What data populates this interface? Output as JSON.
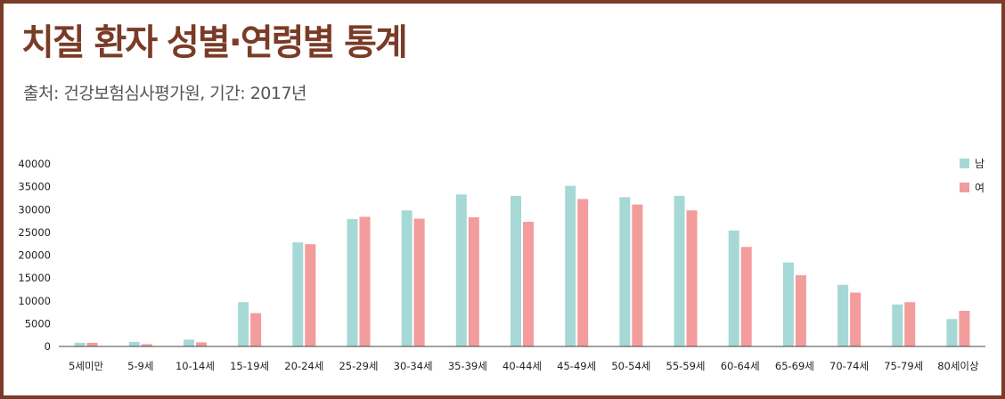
{
  "title": "치질 환자 성별·연령별 통계",
  "source": "출처: 건강보험심사평가원, 기간: 2017년",
  "colors": {
    "frame": "#7a3b27",
    "male": "#a6d9d6",
    "female": "#f39c9c",
    "axis": "#444444"
  },
  "chart_data": {
    "type": "bar",
    "title": "치질 환자 성별·연령별 통계",
    "xlabel": "",
    "ylabel": "",
    "categories": [
      "5세미만",
      "5-9세",
      "10-14세",
      "15-19세",
      "20-24세",
      "25-29세",
      "30-34세",
      "35-39세",
      "40-44세",
      "45-49세",
      "50-54세",
      "55-59세",
      "60-64세",
      "65-69세",
      "70-74세",
      "75-79세",
      "80세이상"
    ],
    "series": [
      {
        "name": "남",
        "color": "#a6d9d6",
        "values": [
          800,
          1000,
          1500,
          9700,
          22800,
          27900,
          29800,
          33300,
          33000,
          35200,
          32700,
          33000,
          25400,
          18400,
          13500,
          9200,
          6000
        ]
      },
      {
        "name": "여",
        "color": "#f39c9c",
        "values": [
          800,
          500,
          900,
          7300,
          22400,
          28400,
          28000,
          28300,
          27300,
          32300,
          31100,
          29800,
          21800,
          15600,
          11800,
          9700,
          7800
        ]
      }
    ],
    "ylim": [
      0,
      40000
    ],
    "yticks": [
      "0",
      "5000",
      "10000",
      "15000",
      "20000",
      "25000",
      "30000",
      "35000",
      "40000"
    ],
    "grid": false,
    "legend": "top-right"
  }
}
